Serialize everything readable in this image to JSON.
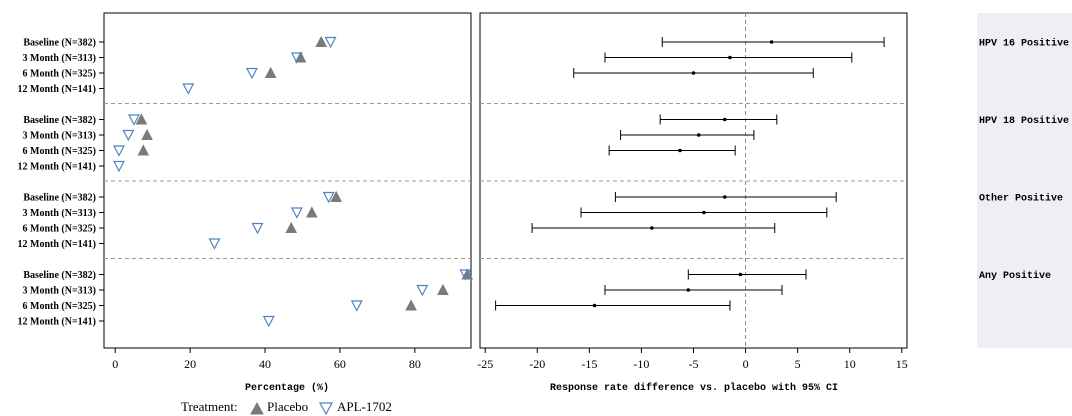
{
  "chart_data": [
    {
      "type": "scatter",
      "xlabel": "Percentage (%)",
      "xlim": [
        -3,
        95
      ],
      "xticks": [
        0,
        20,
        40,
        60,
        80
      ],
      "groups": [
        {
          "name": "HPV 16 Positive",
          "rows": [
            {
              "label": "Baseline (N=382)",
              "placebo": 55,
              "apl": 57.5
            },
            {
              "label": "3 Month (N=313)",
              "placebo": 49.5,
              "apl": 48.5
            },
            {
              "label": "6 Month (N=325)",
              "placebo": 41.5,
              "apl": 36.5
            },
            {
              "label": "12 Month (N=141)",
              "placebo": null,
              "apl": 19.5
            }
          ]
        },
        {
          "name": "HPV 18 Positive",
          "rows": [
            {
              "label": "Baseline (N=382)",
              "placebo": 7,
              "apl": 5
            },
            {
              "label": "3 Month (N=313)",
              "placebo": 8.5,
              "apl": 3.5
            },
            {
              "label": "6 Month (N=325)",
              "placebo": 7.5,
              "apl": 1
            },
            {
              "label": "12 Month (N=141)",
              "placebo": null,
              "apl": 1
            }
          ]
        },
        {
          "name": "Other Positive",
          "rows": [
            {
              "label": "Baseline (N=382)",
              "placebo": 59,
              "apl": 57
            },
            {
              "label": "3 Month (N=313)",
              "placebo": 52.5,
              "apl": 48.5
            },
            {
              "label": "6 Month (N=325)",
              "placebo": 47,
              "apl": 38
            },
            {
              "label": "12 Month (N=141)",
              "placebo": null,
              "apl": 26.5
            }
          ]
        },
        {
          "name": "Any Positive",
          "rows": [
            {
              "label": "Baseline (N=382)",
              "placebo": 94,
              "apl": 93.5
            },
            {
              "label": "3 Month (N=313)",
              "placebo": 87.5,
              "apl": 82
            },
            {
              "label": "6 Month (N=325)",
              "placebo": 79,
              "apl": 64.5
            },
            {
              "label": "12 Month (N=141)",
              "placebo": null,
              "apl": 41
            }
          ]
        }
      ]
    },
    {
      "type": "scatter",
      "subtype": "forest",
      "xlabel": "Response rate difference vs. placebo with 95% CI",
      "xlim": [
        -25.5,
        15.5
      ],
      "xticks": [
        -25,
        -20,
        -15,
        -10,
        -5,
        0,
        5,
        10,
        15
      ],
      "reference_line": 0,
      "groups": [
        {
          "name": "HPV 16 Positive",
          "rows": [
            {
              "label": "Baseline (N=382)",
              "est": 2.5,
              "lo": -8,
              "hi": 13.3
            },
            {
              "label": "3 Month (N=313)",
              "est": -1.5,
              "lo": -13.5,
              "hi": 10.2
            },
            {
              "label": "6 Month (N=325)",
              "est": -5,
              "lo": -16.5,
              "hi": 6.5
            },
            {
              "label": "12 Month (N=141)",
              "est": null,
              "lo": null,
              "hi": null
            }
          ]
        },
        {
          "name": "HPV 18 Positive",
          "rows": [
            {
              "label": "Baseline (N=382)",
              "est": -2,
              "lo": -8.2,
              "hi": 3
            },
            {
              "label": "3 Month (N=313)",
              "est": -4.5,
              "lo": -12,
              "hi": 0.8
            },
            {
              "label": "6 Month (N=325)",
              "est": -6.3,
              "lo": -13.1,
              "hi": -1
            },
            {
              "label": "12 Month (N=141)",
              "est": null,
              "lo": null,
              "hi": null
            }
          ]
        },
        {
          "name": "Other Positive",
          "rows": [
            {
              "label": "Baseline (N=382)",
              "est": -2,
              "lo": -12.5,
              "hi": 8.7
            },
            {
              "label": "3 Month (N=313)",
              "est": -4,
              "lo": -15.8,
              "hi": 7.8
            },
            {
              "label": "6 Month (N=325)",
              "est": -9,
              "lo": -20.5,
              "hi": 2.8
            },
            {
              "label": "12 Month (N=141)",
              "est": null,
              "lo": null,
              "hi": null
            }
          ]
        },
        {
          "name": "Any Positive",
          "rows": [
            {
              "label": "Baseline (N=382)",
              "est": -0.5,
              "lo": -5.5,
              "hi": 5.8
            },
            {
              "label": "3 Month (N=313)",
              "est": -5.5,
              "lo": -13.5,
              "hi": 3.5
            },
            {
              "label": "6 Month (N=325)",
              "est": -14.5,
              "lo": -24,
              "hi": -1.5
            },
            {
              "label": "12 Month (N=141)",
              "est": null,
              "lo": null,
              "hi": null
            }
          ]
        }
      ]
    }
  ],
  "legend": {
    "title": "Treatment:",
    "items": [
      {
        "name": "Placebo",
        "marker": "filled-triangle-up",
        "color": "#7a7a7a"
      },
      {
        "name": "APL-1702",
        "marker": "open-triangle-down",
        "color": "#4f83c2"
      }
    ]
  },
  "colors": {
    "placebo": "#7a7a7a",
    "apl": "#4f83c2",
    "group_panel_bg": "#eeeef3",
    "separator": "#999999",
    "ci": "#000000"
  }
}
